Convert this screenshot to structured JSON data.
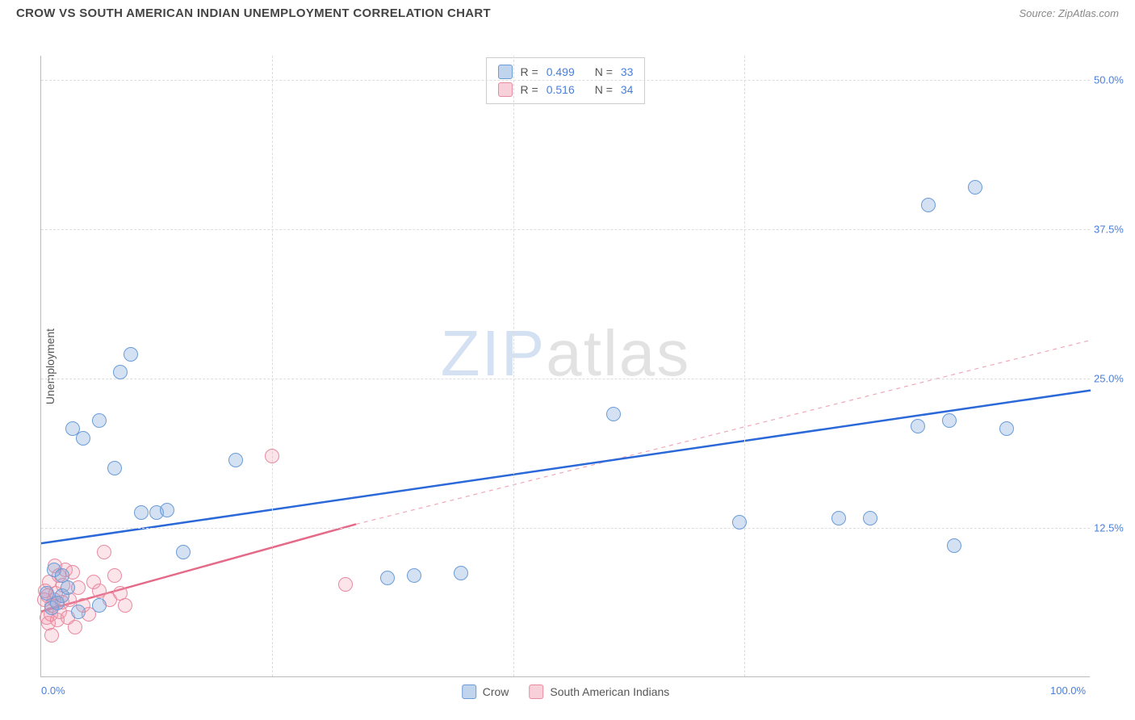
{
  "header": {
    "title": "CROW VS SOUTH AMERICAN INDIAN UNEMPLOYMENT CORRELATION CHART",
    "source_label": "Source: ",
    "source_value": "ZipAtlas.com"
  },
  "chart": {
    "type": "scatter",
    "ylabel": "Unemployment",
    "xlim": [
      0,
      100
    ],
    "ylim": [
      0,
      52
    ],
    "x_ticks": [
      {
        "value": 0,
        "label": "0.0%"
      },
      {
        "value": 100,
        "label": "100.0%"
      }
    ],
    "x_ticks_minor_values": [
      22,
      45,
      67
    ],
    "y_ticks": [
      {
        "value": 12.5,
        "label": "12.5%"
      },
      {
        "value": 25.0,
        "label": "25.0%"
      },
      {
        "value": 37.5,
        "label": "37.5%"
      },
      {
        "value": 50.0,
        "label": "50.0%"
      }
    ],
    "background_color": "#ffffff",
    "grid_color": "#dddddd",
    "series": {
      "crow": {
        "label": "Crow",
        "color_fill": "rgba(130,170,220,0.35)",
        "color_stroke": "#6a9cd8",
        "marker_size": 18,
        "R": "0.499",
        "N": "33",
        "trend": {
          "type": "line",
          "x1": 0,
          "y1": 11.2,
          "x2": 100,
          "y2": 24.0,
          "color": "#2b68d8",
          "width": 2.5,
          "dash": "solid"
        },
        "trend_extension": null,
        "points": [
          {
            "x": 0.5,
            "y": 7.0
          },
          {
            "x": 1.0,
            "y": 5.8
          },
          {
            "x": 1.2,
            "y": 9.0
          },
          {
            "x": 1.5,
            "y": 6.2
          },
          {
            "x": 2.0,
            "y": 8.5
          },
          {
            "x": 2.0,
            "y": 6.8
          },
          {
            "x": 2.5,
            "y": 7.5
          },
          {
            "x": 3.0,
            "y": 20.8
          },
          {
            "x": 3.5,
            "y": 5.5
          },
          {
            "x": 4.0,
            "y": 20.0
          },
          {
            "x": 5.5,
            "y": 21.5
          },
          {
            "x": 5.5,
            "y": 6.0
          },
          {
            "x": 7.0,
            "y": 17.5
          },
          {
            "x": 7.5,
            "y": 25.5
          },
          {
            "x": 8.5,
            "y": 27.0
          },
          {
            "x": 9.5,
            "y": 13.8
          },
          {
            "x": 11.0,
            "y": 13.8
          },
          {
            "x": 12.0,
            "y": 14.0
          },
          {
            "x": 13.5,
            "y": 10.5
          },
          {
            "x": 18.5,
            "y": 18.2
          },
          {
            "x": 33.0,
            "y": 8.3
          },
          {
            "x": 35.5,
            "y": 8.5
          },
          {
            "x": 40.0,
            "y": 8.7
          },
          {
            "x": 54.5,
            "y": 22.0
          },
          {
            "x": 66.5,
            "y": 13.0
          },
          {
            "x": 76.0,
            "y": 13.3
          },
          {
            "x": 79.0,
            "y": 13.3
          },
          {
            "x": 83.5,
            "y": 21.0
          },
          {
            "x": 84.5,
            "y": 39.5
          },
          {
            "x": 86.5,
            "y": 21.5
          },
          {
            "x": 87.0,
            "y": 11.0
          },
          {
            "x": 89.0,
            "y": 41.0
          },
          {
            "x": 92.0,
            "y": 20.8
          }
        ]
      },
      "sai": {
        "label": "South American Indians",
        "color_fill": "rgba(240,150,170,0.25)",
        "color_stroke": "#e88aa0",
        "marker_size": 18,
        "R": "0.516",
        "N": "34",
        "trend": {
          "type": "line",
          "x1": 0,
          "y1": 5.5,
          "x2": 30,
          "y2": 12.8,
          "color": "#e56a88",
          "width": 2.5,
          "dash": "solid"
        },
        "trend_extension": {
          "x1": 30,
          "y1": 12.8,
          "x2": 100,
          "y2": 28.2,
          "color": "#f0a8b8",
          "width": 1.2,
          "dash": "5,5"
        },
        "points": [
          {
            "x": 0.3,
            "y": 6.5
          },
          {
            "x": 0.4,
            "y": 7.2
          },
          {
            "x": 0.5,
            "y": 5.0
          },
          {
            "x": 0.6,
            "y": 6.8
          },
          {
            "x": 0.7,
            "y": 4.5
          },
          {
            "x": 0.8,
            "y": 8.0
          },
          {
            "x": 0.9,
            "y": 5.3
          },
          {
            "x": 1.0,
            "y": 6.0
          },
          {
            "x": 1.0,
            "y": 3.5
          },
          {
            "x": 1.2,
            "y": 6.5
          },
          {
            "x": 1.3,
            "y": 9.3
          },
          {
            "x": 1.4,
            "y": 7.0
          },
          {
            "x": 1.5,
            "y": 4.8
          },
          {
            "x": 1.7,
            "y": 8.5
          },
          {
            "x": 1.8,
            "y": 5.5
          },
          {
            "x": 2.0,
            "y": 6.3
          },
          {
            "x": 2.1,
            "y": 7.7
          },
          {
            "x": 2.3,
            "y": 9.0
          },
          {
            "x": 2.5,
            "y": 5.0
          },
          {
            "x": 2.7,
            "y": 6.5
          },
          {
            "x": 3.0,
            "y": 8.8
          },
          {
            "x": 3.2,
            "y": 4.2
          },
          {
            "x": 3.5,
            "y": 7.5
          },
          {
            "x": 4.0,
            "y": 6.0
          },
          {
            "x": 4.5,
            "y": 5.3
          },
          {
            "x": 5.0,
            "y": 8.0
          },
          {
            "x": 5.5,
            "y": 7.2
          },
          {
            "x": 6.0,
            "y": 10.5
          },
          {
            "x": 6.5,
            "y": 6.5
          },
          {
            "x": 7.0,
            "y": 8.5
          },
          {
            "x": 7.5,
            "y": 7.0
          },
          {
            "x": 8.0,
            "y": 6.0
          },
          {
            "x": 22.0,
            "y": 18.5
          },
          {
            "x": 29.0,
            "y": 7.8
          }
        ]
      }
    },
    "legend_top": {
      "r_label": "R =",
      "n_label": "N ="
    },
    "watermark": {
      "zip": "ZIP",
      "atlas": "atlas"
    }
  }
}
